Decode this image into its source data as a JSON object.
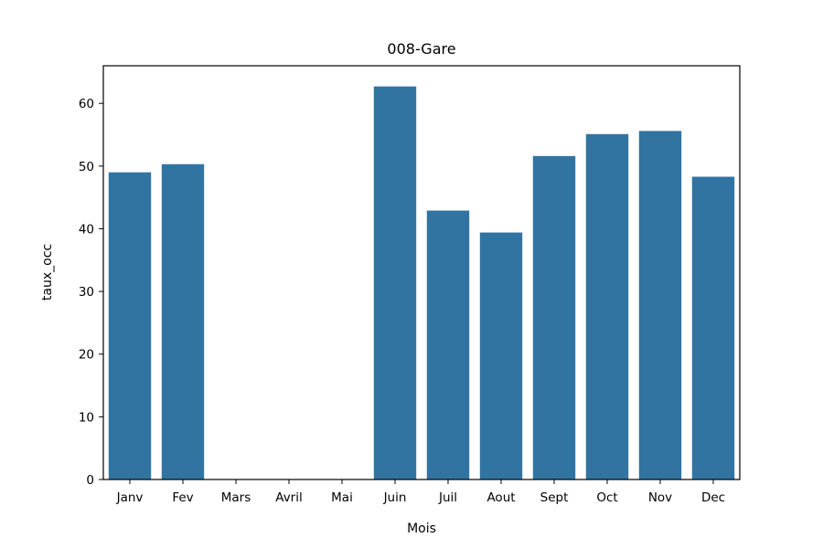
{
  "chart_data": {
    "type": "bar",
    "title": "008-Gare",
    "xlabel": "Mois",
    "ylabel": "taux_occ",
    "categories": [
      "Janv",
      "Fev",
      "Mars",
      "Avril",
      "Mai",
      "Juin",
      "Juil",
      "Aout",
      "Sept",
      "Oct",
      "Nov",
      "Dec"
    ],
    "values": [
      49.0,
      50.3,
      null,
      null,
      null,
      62.7,
      42.9,
      39.4,
      51.6,
      55.1,
      55.6,
      48.3
    ],
    "ylim": [
      0,
      66
    ],
    "yticks": [
      0,
      10,
      20,
      30,
      40,
      50,
      60
    ],
    "bar_color": "#3274a1",
    "grid": false,
    "legend": "none"
  }
}
